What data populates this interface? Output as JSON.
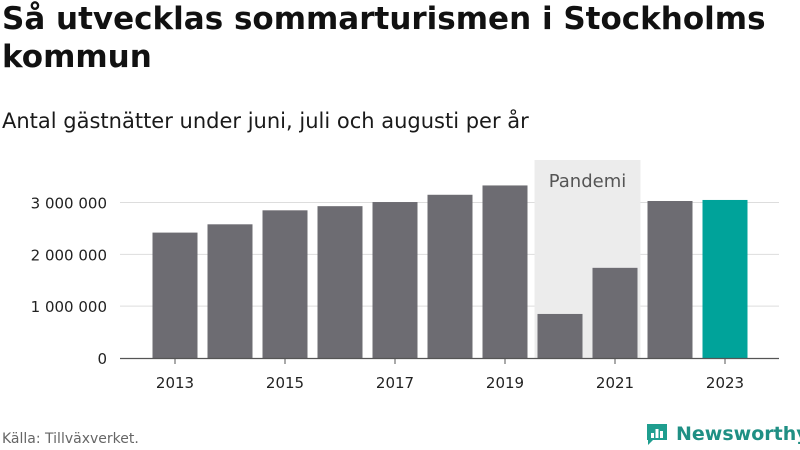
{
  "title": "Så utvecklas sommarturismen i Stockholms kommun",
  "subtitle": "Antal gästnätter under juni, juli och augusti per år",
  "source": "Källa: Tillväxverket.",
  "brand": {
    "name": "Newsworthy",
    "icon": "bar-chart-logo-icon",
    "color": "#1f9e8f"
  },
  "chart_data": {
    "type": "bar",
    "categories": [
      "2013",
      "2014",
      "2015",
      "2016",
      "2017",
      "2018",
      "2019",
      "2020",
      "2021",
      "2022",
      "2023"
    ],
    "values": [
      2420000,
      2580000,
      2850000,
      2930000,
      3010000,
      3150000,
      3330000,
      850000,
      1740000,
      3030000,
      3050000
    ],
    "highlight_index": 10,
    "bar_color": "#6d6c72",
    "highlight_color": "#00a39a",
    "ylim": [
      0,
      3300000
    ],
    "yticks": [
      0,
      1000000,
      2000000,
      3000000
    ],
    "ytick_labels": [
      "0",
      "1 000 000",
      "2 000 000",
      "3 000 000"
    ],
    "xtick_labels": [
      "2013",
      "2015",
      "2017",
      "2019",
      "2021",
      "2023"
    ],
    "grid": true,
    "annotation": {
      "label": "Pandemi",
      "from": "2020",
      "to": "2021",
      "color": "#ececec"
    }
  }
}
